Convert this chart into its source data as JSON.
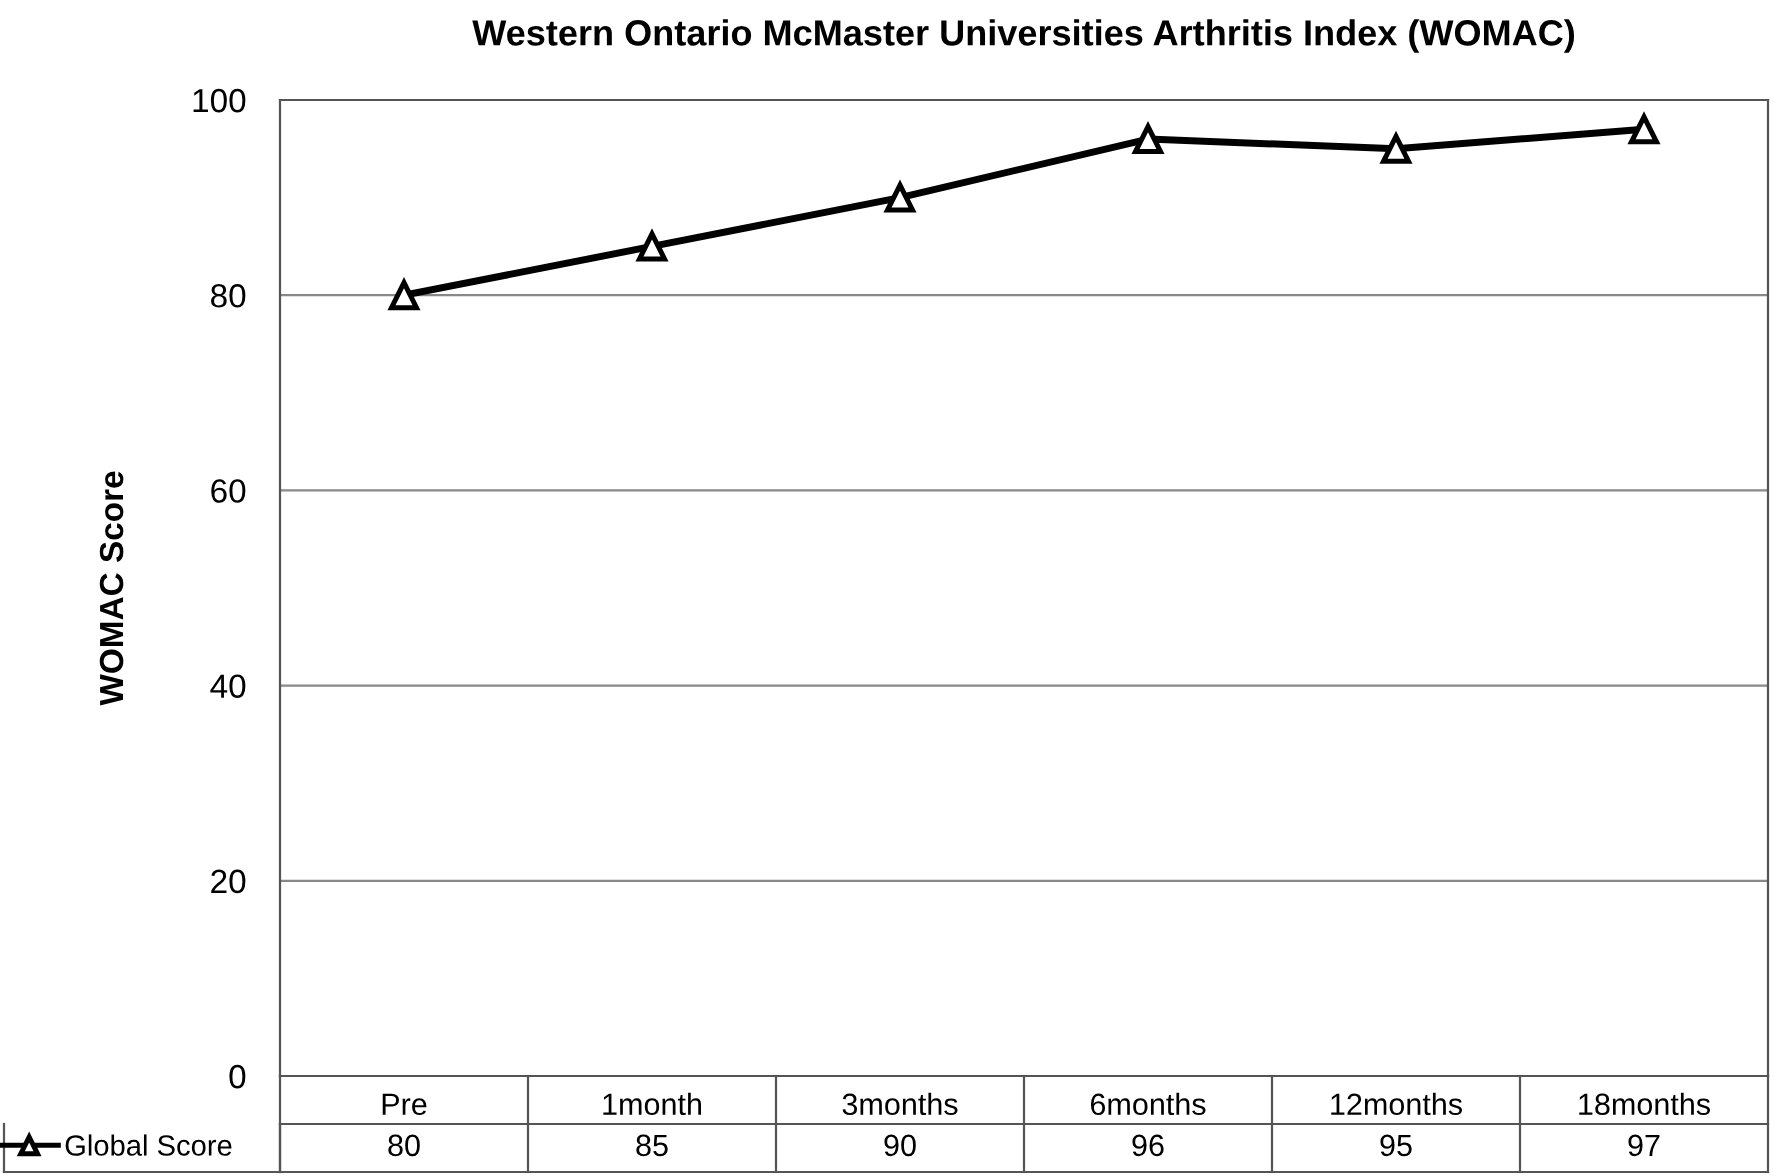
{
  "chart_data": {
    "type": "line",
    "title": "Western Ontario McMaster Universities Arthritis Index (WOMAC)",
    "ylabel": "WOMAC Score",
    "categories": [
      "Pre",
      "1month",
      "3months",
      "6months",
      "12months",
      "18months"
    ],
    "series": [
      {
        "name": "Global Score",
        "color": "#000000",
        "values": [
          80,
          85,
          90,
          96,
          95,
          97
        ]
      }
    ],
    "ylim": [
      0,
      100
    ],
    "yticks": [
      0,
      20,
      40,
      60,
      80,
      100
    ],
    "grid": "y",
    "marker": "triangle",
    "line_style": "solid",
    "legend": "bottom",
    "data_labels": true
  }
}
